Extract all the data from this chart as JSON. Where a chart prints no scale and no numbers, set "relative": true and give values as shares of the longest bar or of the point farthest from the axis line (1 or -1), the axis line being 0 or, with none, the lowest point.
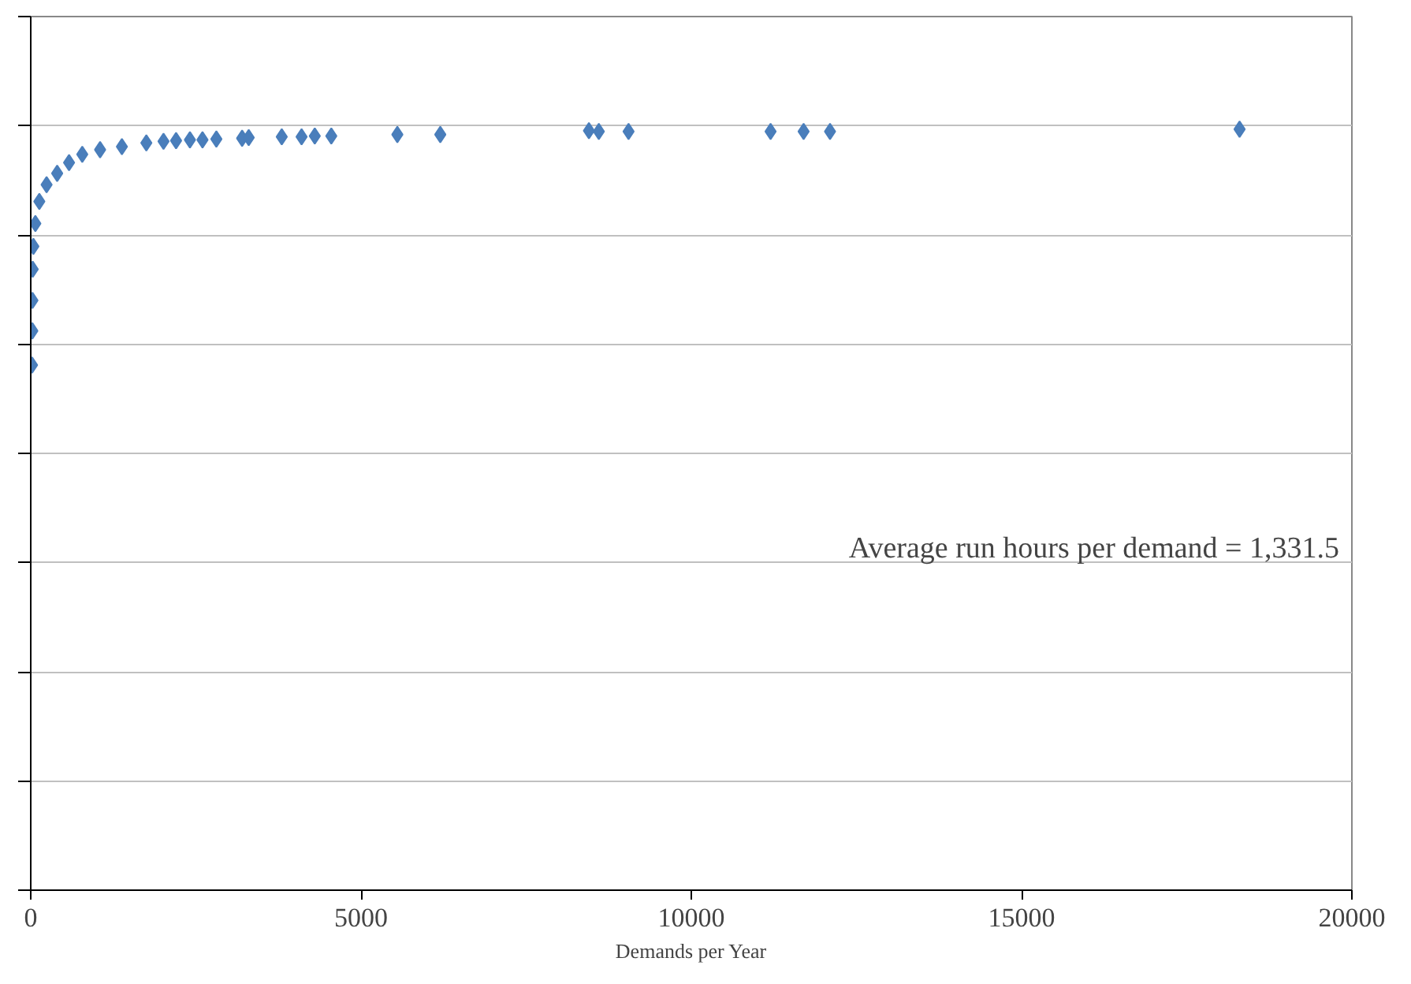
{
  "chart_data": {
    "type": "scatter",
    "xlabel": "Demands per Year",
    "annotations": [
      "Average run hours per demand = 1,331.5"
    ],
    "x": [
      20,
      24,
      26,
      30,
      40,
      70,
      130,
      240,
      400,
      580,
      780,
      1050,
      1380,
      1750,
      2010,
      2200,
      2410,
      2600,
      2810,
      3200,
      3300,
      3800,
      4100,
      4300,
      4550,
      5550,
      6200,
      8450,
      8600,
      9050,
      11200,
      11700,
      12100,
      18300
    ],
    "values": [
      0.69,
      0.735,
      0.775,
      0.816,
      0.846,
      0.876,
      0.905,
      0.927,
      0.942,
      0.956,
      0.967,
      0.973,
      0.977,
      0.982,
      0.984,
      0.985,
      0.986,
      0.986,
      0.987,
      0.988,
      0.989,
      0.99,
      0.99,
      0.991,
      0.991,
      0.993,
      0.993,
      0.998,
      0.997,
      0.997,
      0.997,
      0.997,
      0.997,
      1.0
    ],
    "color": "#4a7ebb",
    "marker": "diamond",
    "relative": true,
    "xlim": [
      0,
      20000
    ],
    "xticks": [
      0,
      5000,
      10000,
      15000,
      20000
    ],
    "grid": "y"
  }
}
